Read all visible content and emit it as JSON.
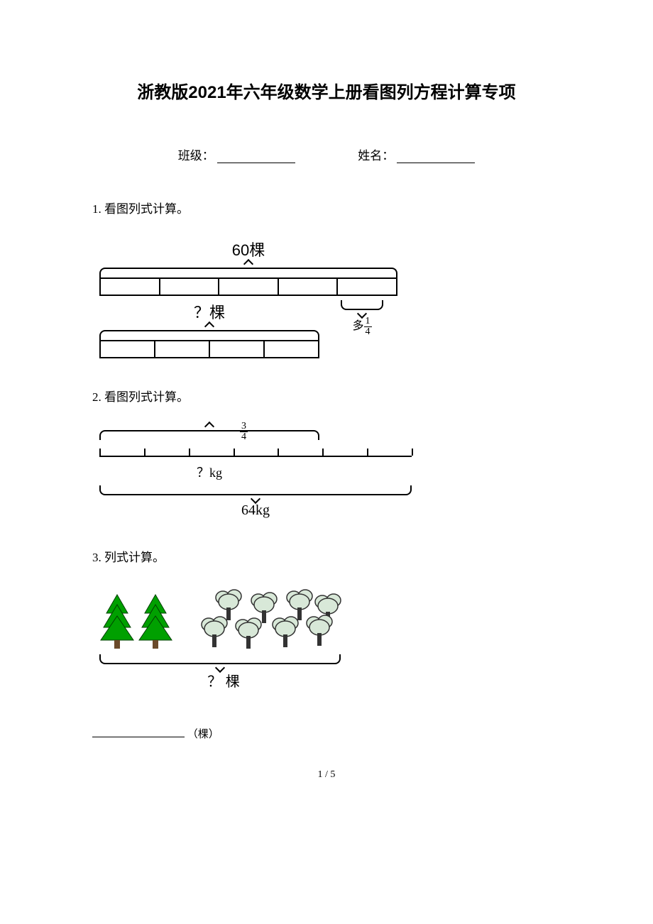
{
  "title": "浙教版2021年六年级数学上册看图列方程计算专项",
  "form": {
    "class_label": "班级：",
    "name_label": "姓名："
  },
  "questions": {
    "q1": {
      "label": "1. 看图列式计算。",
      "diagram": {
        "top_label": "60棵",
        "total_segments": 5,
        "unknown_label": "？棵",
        "unknown_segments": 4,
        "extra_label": "多",
        "extra_fraction": {
          "num": "1",
          "den": "4"
        },
        "bar_color": "#000000"
      }
    },
    "q2": {
      "label": "2. 看图列式计算。",
      "diagram": {
        "top_fraction": {
          "num": "3",
          "den": "4"
        },
        "unknown_label": "？kg",
        "total_label": "64kg",
        "total_segments": 7,
        "fraction_span_ratio": 0.71
      }
    },
    "q3": {
      "label": "3. 列式计算。",
      "diagram": {
        "pine_count": 2,
        "cloud_tree_count": 8,
        "pine_color": "#00a000",
        "pine_trunk_color": "#6b4a2a",
        "cloud_color": "#d8e8d8",
        "cloud_outline": "#333333",
        "unknown_label": "？ 棵"
      },
      "answer_unit": "（棵）"
    }
  },
  "pagenum": "1 / 5"
}
